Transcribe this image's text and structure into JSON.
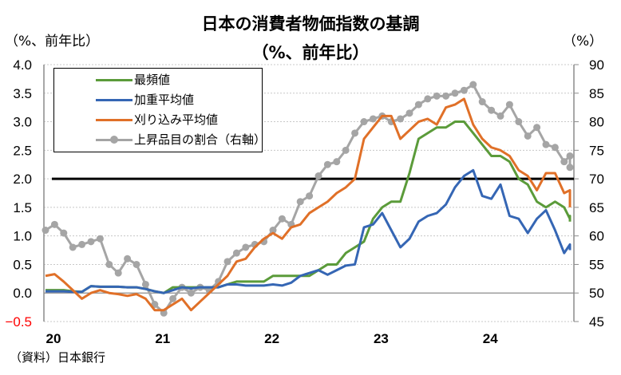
{
  "title": "日本の消費者物価指数の基調",
  "subtitle": "（%、前年比）",
  "left_unit": "（%、前年比）",
  "right_unit": "（%）",
  "source": "（資料）日本銀行",
  "colors": {
    "mode": "#5b9b3a",
    "weighted_median": "#3566b4",
    "trimmed_mean": "#e07028",
    "rising_share": "#a5a5a5",
    "target_line": "#000000",
    "negative_tick": "#ff0000"
  },
  "chart_data": {
    "type": "line",
    "title": "日本の消費者物価指数の基調",
    "subtitle": "（%、前年比）",
    "xlabel": "",
    "ylabel": "（%、前年比）",
    "y2label": "（%）",
    "ylim": [
      -0.5,
      4.0
    ],
    "y2lim": [
      45,
      90
    ],
    "yticks": [
      "4.0",
      "3.5",
      "3.0",
      "2.5",
      "2.0",
      "1.5",
      "1.0",
      "0.5",
      "0.0",
      "-0.5"
    ],
    "y2ticks": [
      "90",
      "85",
      "80",
      "75",
      "70",
      "65",
      "60",
      "55",
      "50",
      "45"
    ],
    "xticks": [
      "20",
      "21",
      "22",
      "23",
      "24"
    ],
    "grid": true,
    "legend_position": "top-left",
    "reference_line": {
      "axis": "left",
      "value": 2.0
    },
    "series": [
      {
        "name": "最頻値",
        "axis": "left",
        "values": [
          0.05,
          0.05,
          0.05,
          0.03,
          0.02,
          0.12,
          0.11,
          0.11,
          0.11,
          0.1,
          0.1,
          0.07,
          0.03,
          0.0,
          0.1,
          0.1,
          0.1,
          0.1,
          0.1,
          0.1,
          0.15,
          0.2,
          0.2,
          0.2,
          0.2,
          0.3,
          0.3,
          0.3,
          0.3,
          0.3,
          0.4,
          0.5,
          0.5,
          0.7,
          0.8,
          0.9,
          1.3,
          1.5,
          1.6,
          1.6,
          2.1,
          2.7,
          2.8,
          2.9,
          2.9,
          3.0,
          3.0,
          2.8,
          2.6,
          2.4,
          2.4,
          2.3,
          2.0,
          1.9,
          1.6,
          1.5,
          1.6,
          1.5,
          1.3,
          1.35,
          1.25
        ]
      },
      {
        "name": "加重平均値",
        "axis": "left",
        "values": [
          0.03,
          0.03,
          0.03,
          0.02,
          0.02,
          0.12,
          0.11,
          0.11,
          0.11,
          0.1,
          0.1,
          0.07,
          0.03,
          0.0,
          0.05,
          0.1,
          0.08,
          0.1,
          0.1,
          0.1,
          0.15,
          0.15,
          0.13,
          0.13,
          0.13,
          0.15,
          0.13,
          0.18,
          0.3,
          0.35,
          0.4,
          0.32,
          0.4,
          0.48,
          0.5,
          1.15,
          1.2,
          1.4,
          1.1,
          0.8,
          0.95,
          1.25,
          1.35,
          1.4,
          1.55,
          1.85,
          2.05,
          2.15,
          1.7,
          1.65,
          1.9,
          1.35,
          1.3,
          1.05,
          1.3,
          1.45,
          1.1,
          0.7,
          0.85,
          0.75
        ]
      },
      {
        "name": "刈り込み平均値",
        "axis": "left",
        "values": [
          0.3,
          0.33,
          0.2,
          0.05,
          -0.1,
          0.0,
          0.05,
          0.0,
          -0.02,
          -0.05,
          -0.02,
          -0.1,
          -0.3,
          -0.3,
          -0.2,
          -0.1,
          -0.3,
          -0.15,
          0.0,
          0.15,
          0.3,
          0.55,
          0.6,
          0.8,
          0.95,
          1.05,
          0.95,
          1.15,
          1.2,
          1.4,
          1.5,
          1.6,
          1.75,
          1.85,
          2.0,
          2.7,
          2.9,
          3.1,
          3.1,
          2.7,
          2.85,
          3.0,
          3.05,
          2.95,
          3.25,
          3.3,
          3.4,
          2.95,
          2.7,
          2.55,
          2.5,
          2.4,
          2.15,
          2.05,
          1.8,
          2.1,
          2.1,
          1.75,
          1.8,
          1.7,
          1.5
        ]
      },
      {
        "name": "上昇品目の割合（右軸）",
        "axis": "right",
        "values": [
          61,
          62,
          60.5,
          58,
          58.5,
          59,
          59.5,
          55,
          53.5,
          56,
          55,
          51.5,
          48,
          46.5,
          49,
          51,
          50,
          51,
          50.5,
          52,
          55.5,
          57,
          58,
          58.5,
          59,
          61,
          63,
          62,
          66,
          67,
          70.5,
          72.5,
          73,
          75,
          78,
          80,
          80.5,
          81,
          80,
          80.5,
          81.5,
          83,
          84,
          84.5,
          84.5,
          85,
          85.5,
          86.5,
          83.5,
          82,
          81,
          83,
          80,
          77.5,
          79,
          76,
          75.5,
          73,
          74,
          72
        ]
      }
    ]
  },
  "legend": [
    {
      "label": "最頻値"
    },
    {
      "label": "加重平均値"
    },
    {
      "label": "刈り込み平均値"
    },
    {
      "label": "上昇品目の割合（右軸）"
    }
  ]
}
